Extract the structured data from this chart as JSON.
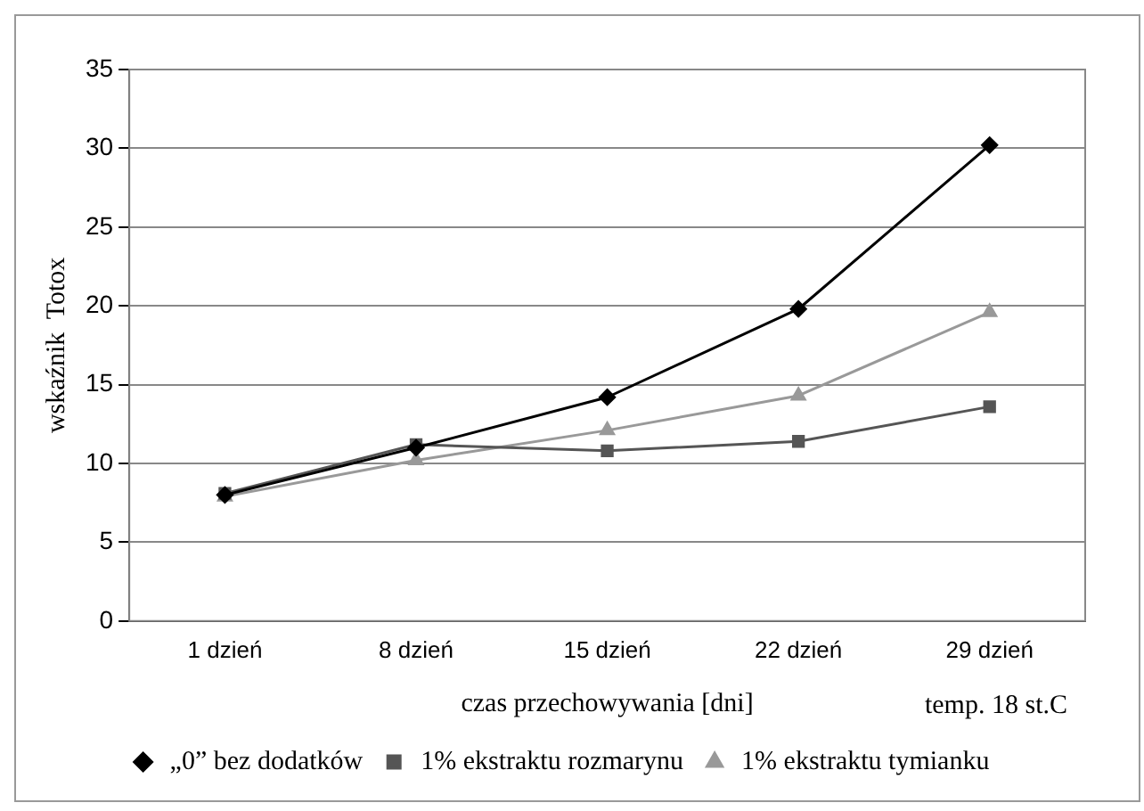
{
  "chart_data": {
    "type": "line",
    "categories": [
      "1 dzień",
      "8 dzień",
      "15 dzień",
      "22 dzień",
      "29 dzień"
    ],
    "ylabel": "wskaźnik  Totox",
    "xlabel": "czas przechowywania [dni]",
    "annotations": [
      "temp. 18 st.C"
    ],
    "ylim": [
      0,
      35
    ],
    "yticks": [
      0,
      5,
      10,
      15,
      20,
      25,
      30,
      35
    ],
    "grid": "y",
    "legend": "bottom",
    "line_style": "solid",
    "series": [
      {
        "name": "„0” bez dodatków",
        "color": "#000000",
        "marker": "diamond",
        "values": [
          8.0,
          11.0,
          14.2,
          19.8,
          30.2
        ]
      },
      {
        "name": "1% ekstraktu rozmarynu",
        "color": "#555555",
        "marker": "square",
        "values": [
          8.1,
          11.2,
          10.8,
          11.4,
          13.6
        ]
      },
      {
        "name": "1% ekstraktu tymianku",
        "color": "#999999",
        "marker": "triangle",
        "values": [
          7.9,
          10.2,
          12.1,
          14.3,
          19.6
        ]
      }
    ]
  }
}
